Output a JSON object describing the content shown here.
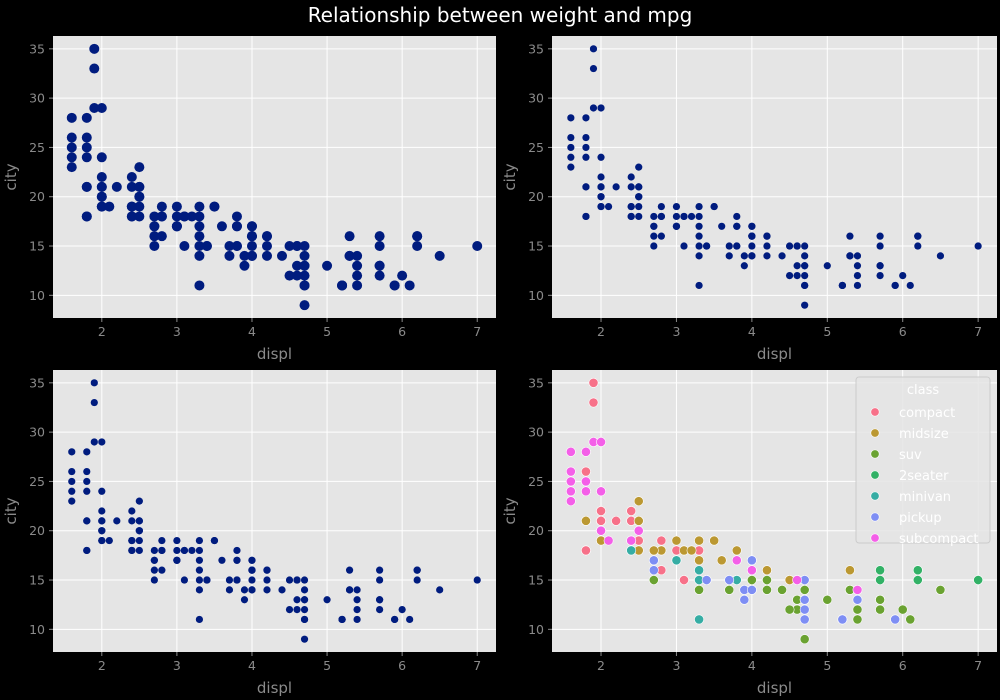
{
  "title": "Relationship between weight and mpg",
  "chart_data": [
    {
      "type": "scatter",
      "xlabel": "displ",
      "ylabel": "city",
      "xlim": [
        1.35,
        7.25
      ],
      "ylim": [
        7.7,
        36.3
      ],
      "xticks": [
        2,
        3,
        4,
        5,
        6,
        7
      ],
      "yticks": [
        10,
        15,
        20,
        25,
        30,
        35
      ],
      "grid": true,
      "point_size": "large",
      "series": [
        {
          "color": "#001c7f",
          "class_ref": "all"
        }
      ]
    },
    {
      "type": "scatter",
      "xlabel": "displ",
      "ylabel": "city",
      "xlim": [
        1.35,
        7.25
      ],
      "ylim": [
        7.7,
        36.3
      ],
      "xticks": [
        2,
        3,
        4,
        5,
        6,
        7
      ],
      "yticks": [
        10,
        15,
        20,
        25,
        30,
        35
      ],
      "grid": true,
      "point_size": "small",
      "series": [
        {
          "color": "#001c7f",
          "class_ref": "all"
        }
      ]
    },
    {
      "type": "scatter",
      "xlabel": "displ",
      "ylabel": "city",
      "xlim": [
        1.35,
        7.25
      ],
      "ylim": [
        7.7,
        36.3
      ],
      "xticks": [
        2,
        3,
        4,
        5,
        6,
        7
      ],
      "yticks": [
        10,
        15,
        20,
        25,
        30,
        35
      ],
      "grid": true,
      "point_size": "small",
      "series": [
        {
          "color": "#001c7f",
          "class_ref": "all"
        }
      ]
    },
    {
      "type": "scatter",
      "xlabel": "displ",
      "ylabel": "city",
      "xlim": [
        1.35,
        7.25
      ],
      "ylim": [
        7.7,
        36.3
      ],
      "xticks": [
        2,
        3,
        4,
        5,
        6,
        7
      ],
      "yticks": [
        10,
        15,
        20,
        25,
        30,
        35
      ],
      "grid": true,
      "point_size": "medium",
      "legend": {
        "title": "class",
        "placement": "top-right"
      },
      "series": [
        {
          "name": "compact",
          "color": "#f77189",
          "points": [
            [
              1.8,
              18
            ],
            [
              1.8,
              21
            ],
            [
              2,
              20
            ],
            [
              2,
              21
            ],
            [
              2.8,
              16
            ],
            [
              2.8,
              18
            ],
            [
              3.1,
              18
            ],
            [
              1.8,
              18
            ],
            [
              2,
              22
            ],
            [
              2.2,
              21
            ],
            [
              2.4,
              21
            ],
            [
              2.5,
              21
            ],
            [
              2.4,
              22
            ],
            [
              2.5,
              19
            ],
            [
              3,
              18
            ],
            [
              2,
              19
            ],
            [
              2.5,
              20
            ],
            [
              3.3,
              18
            ],
            [
              1.8,
              26
            ],
            [
              1.9,
              33
            ],
            [
              1.9,
              35
            ],
            [
              2,
              21
            ],
            [
              2.8,
              19
            ],
            [
              3.1,
              15
            ],
            [
              4,
              17
            ],
            [
              4.2,
              16
            ],
            [
              4.6,
              15
            ]
          ]
        },
        {
          "name": "midsize",
          "color": "#bb9832",
          "points": [
            [
              2.4,
              18
            ],
            [
              2.5,
              23
            ],
            [
              3,
              17
            ],
            [
              3.5,
              19
            ],
            [
              3.6,
              17
            ],
            [
              3.8,
              15
            ],
            [
              3.1,
              18
            ],
            [
              3.8,
              17
            ],
            [
              3.3,
              19
            ],
            [
              4.5,
              15
            ],
            [
              2.7,
              17
            ],
            [
              3,
              19
            ],
            [
              3.2,
              18
            ],
            [
              3.5,
              19
            ],
            [
              2.5,
              18
            ],
            [
              2.4,
              19
            ],
            [
              2.5,
              21
            ],
            [
              2.8,
              18
            ],
            [
              1.8,
              21
            ],
            [
              3.3,
              17
            ],
            [
              4.2,
              16
            ],
            [
              2,
              19
            ],
            [
              2.7,
              18
            ],
            [
              3.8,
              18
            ],
            [
              5.3,
              16
            ]
          ]
        },
        {
          "name": "suv",
          "color": "#6aa231",
          "points": [
            [
              5.7,
              13
            ],
            [
              6.2,
              16
            ],
            [
              4.2,
              15
            ],
            [
              5.3,
              14
            ],
            [
              4.7,
              11
            ],
            [
              5.7,
              12
            ],
            [
              6.5,
              14
            ],
            [
              3.7,
              14
            ],
            [
              4.7,
              9
            ],
            [
              5.2,
              11
            ],
            [
              5.7,
              13
            ],
            [
              6.1,
              11
            ],
            [
              4,
              14
            ],
            [
              4.6,
              13
            ],
            [
              5.4,
              11
            ],
            [
              4.2,
              14
            ],
            [
              4.7,
              13
            ],
            [
              5.4,
              12
            ],
            [
              4.6,
              12
            ],
            [
              5,
              13
            ],
            [
              5.3,
              14
            ],
            [
              5.9,
              11
            ],
            [
              4,
              15
            ],
            [
              2.7,
              15
            ],
            [
              4.5,
              12
            ],
            [
              3,
              17
            ],
            [
              4,
              16
            ],
            [
              4.7,
              14
            ],
            [
              3.4,
              15
            ],
            [
              6,
              12
            ],
            [
              3.3,
              14
            ],
            [
              4.4,
              14
            ]
          ]
        },
        {
          "name": "2seater",
          "color": "#32b166",
          "points": [
            [
              5.7,
              16
            ],
            [
              5.7,
              15
            ],
            [
              6.2,
              16
            ],
            [
              6.2,
              15
            ],
            [
              7,
              15
            ]
          ]
        },
        {
          "name": "minivan",
          "color": "#36ada4",
          "points": [
            [
              2.4,
              18
            ],
            [
              3,
              17
            ],
            [
              3.3,
              16
            ],
            [
              3.3,
              15
            ],
            [
              3.8,
              15
            ],
            [
              4,
              16
            ],
            [
              3.3,
              11
            ]
          ]
        },
        {
          "name": "pickup",
          "color": "#7e8ef4",
          "points": [
            [
              3.7,
              15
            ],
            [
              3.9,
              14
            ],
            [
              4.7,
              13
            ],
            [
              5.2,
              11
            ],
            [
              5.9,
              11
            ],
            [
              4.7,
              12
            ],
            [
              2.7,
              17
            ],
            [
              2.7,
              16
            ],
            [
              3.4,
              15
            ],
            [
              4,
              14
            ],
            [
              4.7,
              11
            ],
            [
              5.4,
              13
            ],
            [
              4,
              17
            ],
            [
              4.7,
              15
            ],
            [
              5.2,
              11
            ],
            [
              3.9,
              13
            ]
          ]
        },
        {
          "name": "subcompact",
          "color": "#f45fe8",
          "points": [
            [
              1.6,
              28
            ],
            [
              1.6,
              24
            ],
            [
              1.6,
              25
            ],
            [
              1.6,
              23
            ],
            [
              1.8,
              24
            ],
            [
              1.9,
              29
            ],
            [
              2,
              20
            ],
            [
              2.1,
              19
            ],
            [
              2.4,
              19
            ],
            [
              2.5,
              20
            ],
            [
              3.8,
              17
            ],
            [
              4,
              16
            ],
            [
              4.6,
              15
            ],
            [
              5.4,
              14
            ],
            [
              1.8,
              25
            ],
            [
              1.6,
              26
            ],
            [
              1.8,
              28
            ],
            [
              2,
              29
            ],
            [
              2,
              24
            ]
          ]
        }
      ]
    }
  ]
}
